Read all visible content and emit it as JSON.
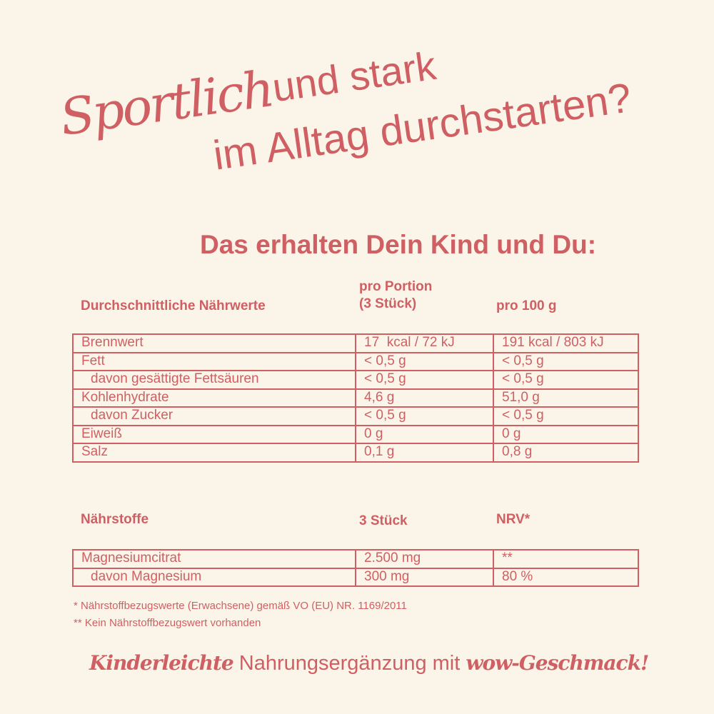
{
  "headline": {
    "script_word": "Sportlich",
    "line1_rest": "und stark",
    "line2": "im Alltag durchstarten?"
  },
  "subtitle": "Das erhalten Dein Kind und Du:",
  "nutrition": {
    "headers": [
      "Durchschnittliche Nährwerte",
      "pro Portion",
      "(3 Stück)",
      "pro 100 g"
    ],
    "rows": [
      [
        "Brennwert",
        "17  kcal / 72 kJ",
        "191 kcal / 803 kJ"
      ],
      [
        "Fett",
        "< 0,5 g",
        "< 0,5 g"
      ],
      [
        "davon gesättigte Fettsäuren",
        "< 0,5 g",
        "< 0,5 g"
      ],
      [
        "Kohlenhydrate",
        "4,6 g",
        "51,0 g"
      ],
      [
        "davon Zucker",
        "< 0,5 g",
        "< 0,5 g"
      ],
      [
        "Eiweiß",
        "0 g",
        "0 g"
      ],
      [
        "Salz",
        "0,1 g",
        "0,8 g"
      ]
    ]
  },
  "nutrients": {
    "headers": [
      "Nährstoffe",
      "3 Stück",
      "NRV*"
    ],
    "rows": [
      [
        "Magnesiumcitrat",
        "2.500 mg",
        "**"
      ],
      [
        "davon Magnesium",
        "300 mg",
        "80 %"
      ]
    ]
  },
  "footnotes": [
    "* Nährstoffbezugswerte (Erwachsene) gemäß VO (EU) NR. 1169/2011",
    "** Kein Nährstoffbezugswert vorhanden"
  ],
  "tagline": {
    "script1": "Kinderleichte",
    "middle": " Nahrungsergänzung mit ",
    "script2": "wow-Geschmack!"
  },
  "colors": {
    "background": "#fbf5e9",
    "accent": "#cf5f63"
  }
}
